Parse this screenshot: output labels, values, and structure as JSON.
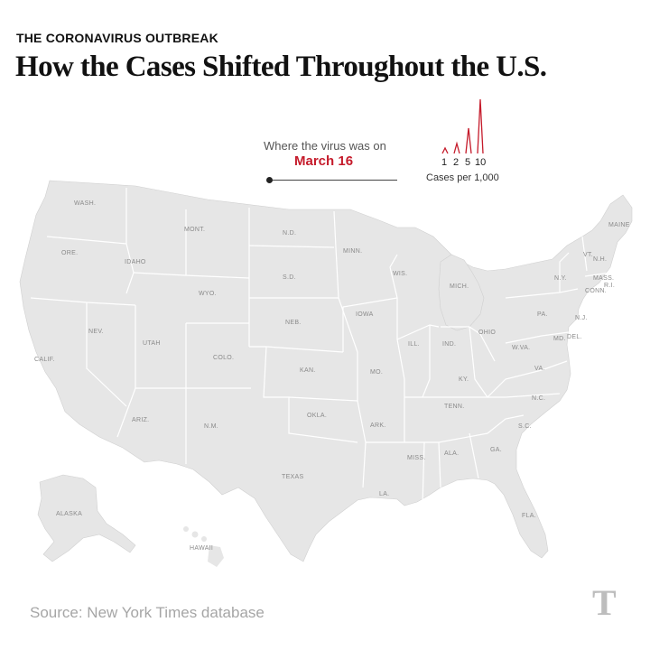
{
  "header": {
    "kicker": "THE CORONAVIRUS OUTBREAK",
    "title": "How the Cases Shifted Throughout the U.S."
  },
  "timeline": {
    "prompt": "Where the virus was on",
    "date": "March 16"
  },
  "legend": {
    "values": [
      "1",
      "2",
      "5",
      "10"
    ],
    "caption": "Cases per 1,000",
    "color": "#c51b2b"
  },
  "map": {
    "land_color": "#e6e6e6",
    "border_color": "#ffffff",
    "states": [
      {
        "id": "wash",
        "label": "WASH."
      },
      {
        "id": "ore",
        "label": "ORE."
      },
      {
        "id": "calif",
        "label": "CALIF."
      },
      {
        "id": "idaho",
        "label": "IDAHO"
      },
      {
        "id": "nev",
        "label": "NEV."
      },
      {
        "id": "mont",
        "label": "MONT."
      },
      {
        "id": "wyo",
        "label": "WYO."
      },
      {
        "id": "utah",
        "label": "UTAH"
      },
      {
        "id": "ariz",
        "label": "ARIZ."
      },
      {
        "id": "colo",
        "label": "COLO."
      },
      {
        "id": "nm",
        "label": "N.M."
      },
      {
        "id": "nd",
        "label": "N.D."
      },
      {
        "id": "sd",
        "label": "S.D."
      },
      {
        "id": "neb",
        "label": "NEB."
      },
      {
        "id": "kan",
        "label": "KAN."
      },
      {
        "id": "okla",
        "label": "OKLA."
      },
      {
        "id": "texas",
        "label": "TEXAS"
      },
      {
        "id": "minn",
        "label": "MINN."
      },
      {
        "id": "iowa",
        "label": "IOWA"
      },
      {
        "id": "mo",
        "label": "MO."
      },
      {
        "id": "ark",
        "label": "ARK."
      },
      {
        "id": "la",
        "label": "LA."
      },
      {
        "id": "wis",
        "label": "WIS."
      },
      {
        "id": "ill",
        "label": "ILL."
      },
      {
        "id": "mich",
        "label": "MICH."
      },
      {
        "id": "ind",
        "label": "IND."
      },
      {
        "id": "ohio",
        "label": "OHIO"
      },
      {
        "id": "ky",
        "label": "KY."
      },
      {
        "id": "tenn",
        "label": "TENN."
      },
      {
        "id": "miss",
        "label": "MISS."
      },
      {
        "id": "ala",
        "label": "ALA."
      },
      {
        "id": "ga",
        "label": "GA."
      },
      {
        "id": "fla",
        "label": "FLA."
      },
      {
        "id": "sc",
        "label": "S.C."
      },
      {
        "id": "nc",
        "label": "N.C."
      },
      {
        "id": "va",
        "label": "VA."
      },
      {
        "id": "wva",
        "label": "W.VA."
      },
      {
        "id": "pa",
        "label": "PA."
      },
      {
        "id": "ny",
        "label": "N.Y."
      },
      {
        "id": "vt",
        "label": "VT."
      },
      {
        "id": "nh",
        "label": "N.H."
      },
      {
        "id": "maine",
        "label": "MAINE"
      },
      {
        "id": "mass",
        "label": "MASS."
      },
      {
        "id": "ri",
        "label": "R.I."
      },
      {
        "id": "conn",
        "label": "CONN."
      },
      {
        "id": "nj",
        "label": "N.J."
      },
      {
        "id": "md",
        "label": "MD."
      },
      {
        "id": "del",
        "label": "DEL."
      },
      {
        "id": "alaska",
        "label": "ALASKA"
      },
      {
        "id": "hawaii",
        "label": "HAWAII"
      }
    ]
  },
  "footer": {
    "source": "Source: New York Times database",
    "logo": "T"
  }
}
